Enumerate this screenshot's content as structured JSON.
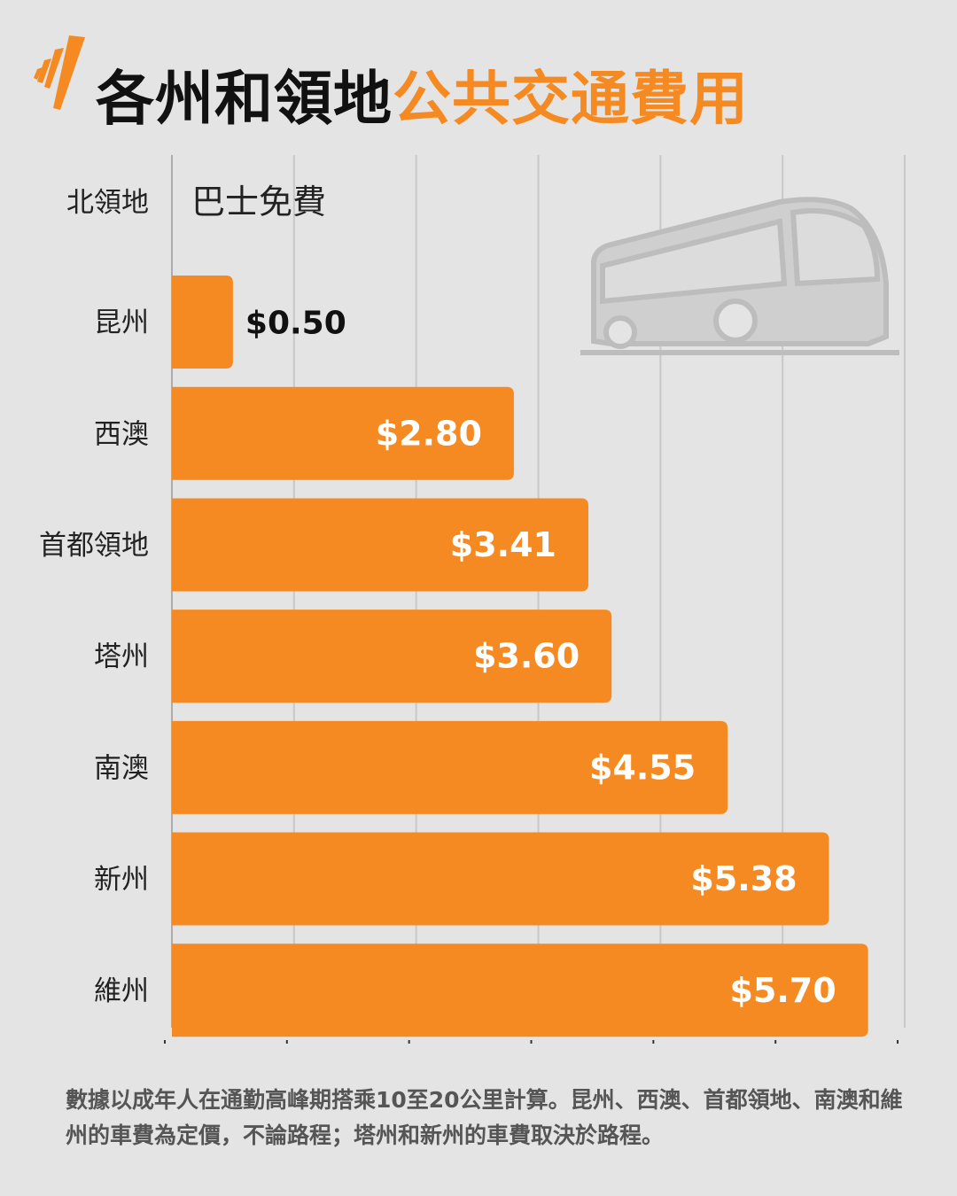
{
  "title": {
    "part1": "各州和領地",
    "part2": "公共交通費用"
  },
  "logo": "SBS",
  "colors": {
    "bar": "#f58a23",
    "background": "#e4e4e4",
    "title_accent": "#f58a23",
    "gridline": "#c8c8c8"
  },
  "chart_data": {
    "type": "bar",
    "orientation": "horizontal",
    "categories": [
      "北領地",
      "昆州",
      "西澳",
      "首都領地",
      "塔州",
      "南澳",
      "新州",
      "維州"
    ],
    "values": [
      0,
      0.5,
      2.8,
      3.41,
      3.6,
      4.55,
      5.38,
      5.7
    ],
    "data_labels": [
      "巴士免費",
      "$0.50",
      "$2.80",
      "$3.41",
      "$3.60",
      "$4.55",
      "$5.38",
      "$5.70"
    ],
    "xlim": [
      0,
      6
    ],
    "grid": true,
    "legend": "none"
  },
  "footnote": "數據以成年人在通勤高峰期搭乘10至20公里計算。昆州、西澳、首都領地、南澳和維州的車費為定價，不論路程；塔州和新州的車費取決於路程。",
  "decoration_icon": "bus-icon"
}
